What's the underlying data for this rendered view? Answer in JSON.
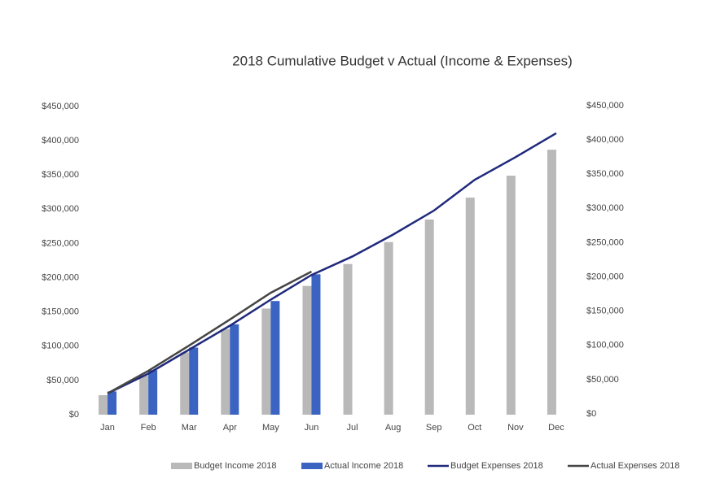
{
  "chart_data": {
    "type": "bar",
    "title": "2018 Cumulative Budget v Actual (Income & Expenses)",
    "categories": [
      "Jan",
      "Feb",
      "Mar",
      "Apr",
      "May",
      "Jun",
      "Jul",
      "Aug",
      "Sep",
      "Oct",
      "Nov",
      "Dec"
    ],
    "series": [
      {
        "name": "Budget Income 2018",
        "type": "bar",
        "color": "#b9b9b9",
        "values": [
          28500,
          57000,
          91000,
          125000,
          155000,
          188000,
          220000,
          252000,
          285000,
          317000,
          349000,
          387000
        ]
      },
      {
        "name": "Actual Income 2018",
        "type": "bar",
        "color": "#3a63c2",
        "values": [
          34000,
          65000,
          98000,
          132000,
          166000,
          205000,
          null,
          null,
          null,
          null,
          null,
          null
        ]
      },
      {
        "name": "Budget Expenses 2018",
        "type": "line",
        "axis": "y2",
        "color": "#1f2a7c",
        "values": [
          31000,
          60000,
          95000,
          130000,
          168000,
          204000,
          231000,
          263000,
          298000,
          343000,
          376000,
          411000
        ]
      },
      {
        "name": "Actual Expenses 2018",
        "type": "line",
        "axis": "y2",
        "color": "#454545",
        "values": [
          31000,
          64000,
          101000,
          139000,
          178000,
          209000,
          null,
          null,
          null,
          null,
          null,
          null
        ]
      }
    ],
    "ylim": [
      0,
      450000
    ],
    "yticks": [
      {
        "value": 0,
        "label": "$0"
      },
      {
        "value": 50000,
        "label": "$50,000"
      },
      {
        "value": 100000,
        "label": "$100,000"
      },
      {
        "value": 150000,
        "label": "$150,000"
      },
      {
        "value": 200000,
        "label": "$200,000"
      },
      {
        "value": 250000,
        "label": "$250,000"
      },
      {
        "value": 300000,
        "label": "$300,000"
      },
      {
        "value": 350000,
        "label": "$350,000"
      },
      {
        "value": 400000,
        "label": "$400,000"
      },
      {
        "value": 450000,
        "label": "$450,000"
      }
    ],
    "y2lim": [
      0,
      450000
    ],
    "y2ticks": [
      {
        "value": 0,
        "label": "$0"
      },
      {
        "value": 50000,
        "label": "$50,000"
      },
      {
        "value": 100000,
        "label": "$100,000"
      },
      {
        "value": 150000,
        "label": "$150,000"
      },
      {
        "value": 200000,
        "label": "$200,000"
      },
      {
        "value": 250000,
        "label": "$250,000"
      },
      {
        "value": 300000,
        "label": "$300,000"
      },
      {
        "value": 350000,
        "label": "$350,000"
      },
      {
        "value": 400000,
        "label": "$400,000"
      },
      {
        "value": 450000,
        "label": "$450,000"
      }
    ],
    "grid": false,
    "legend": "bottom"
  }
}
